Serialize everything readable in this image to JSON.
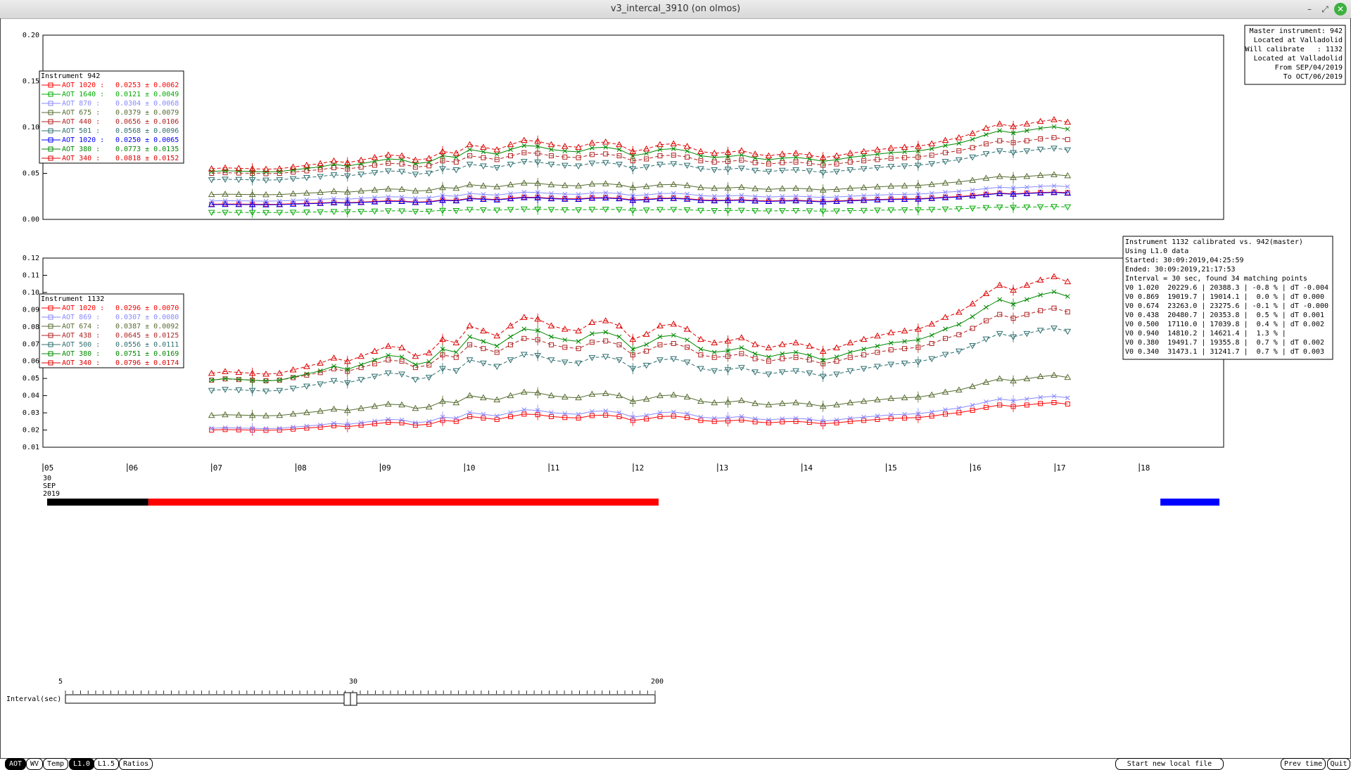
{
  "window": {
    "title": "v3_intercal_3910 (on olmos)",
    "minimize": "–",
    "maximize": "⤢",
    "close": "✕"
  },
  "info_box": {
    "lines": [
      "Master instrument: 942",
      "Located at Valladolid",
      "Will calibrate   : 1132",
      "Located at Valladolid",
      "From SEP/04/2019",
      "To OCT/06/2019"
    ]
  },
  "calib_box": {
    "lines": [
      "Instrument 1132 calibrated vs. 942(master)",
      "Using L1.0 data",
      "Started: 30:09:2019,04:25:59",
      "Ended: 30:09:2019,21:17:53",
      "Interval = 30 sec, found 34 matching points",
      "V0 1.020  20229.6 | 20388.3 | -0.8 % | dT -0.004",
      "V0 0.869  19019.7 | 19014.1 |  0.0 % | dT 0.000",
      "V0 0.674  23263.0 | 23275.6 | -0.1 % | dT -0.000",
      "V0 0.438  20480.7 | 20353.8 |  0.5 % | dT 0.001",
      "V0 0.500  17110.0 | 17039.8 |  0.4 % | dT 0.002",
      "V0 0.940  14810.2 | 14621.4 |  1.3 % |",
      "V0 0.380  19491.7 | 19355.8 |  0.7 % | dT 0.002",
      "V0 0.340  31473.1 | 31241.7 |  0.7 % | dT 0.003"
    ]
  },
  "chart_data": [
    {
      "type": "line",
      "legend_title": "Instrument 942",
      "xlim": [
        5,
        19
      ],
      "ylim": [
        0.0,
        0.2
      ],
      "yticks": [
        "0.00",
        "0.05",
        "0.10",
        "0.15",
        "0.20"
      ],
      "series": [
        {
          "name": "AOT 1020 :",
          "value": "0.0253 ± 0.0062",
          "color": "#ff0000",
          "marker": "square",
          "base": 0.0165,
          "amp": 0.7,
          "dashed": false
        },
        {
          "name": "AOT 1640 :",
          "value": "0.0121 ± 0.0049",
          "color": "#00aa00",
          "marker": "tri-down",
          "base": 0.0075,
          "amp": 0.75,
          "dashed": true
        },
        {
          "name": "AOT 870 :",
          "value": "0.0304 ± 0.0068",
          "color": "#8888ff",
          "marker": "x",
          "base": 0.02,
          "amp": 0.72,
          "dashed": false
        },
        {
          "name": "AOT 675 :",
          "value": "0.0379 ± 0.0079",
          "color": "#556b2f",
          "marker": "tri-up",
          "base": 0.027,
          "amp": 0.7,
          "dashed": false
        },
        {
          "name": "AOT 440 :",
          "value": "0.0656 ± 0.0106",
          "color": "#b22222",
          "marker": "square",
          "base": 0.05,
          "amp": 0.68,
          "dashed": true
        },
        {
          "name": "AOT 501 :",
          "value": "0.0568 ± 0.0096",
          "color": "#2f6f6f",
          "marker": "tri-down",
          "base": 0.043,
          "amp": 0.7,
          "dashed": true
        },
        {
          "name": "AOT 1020 :",
          "value": "0.0250 ± 0.0065",
          "color": "#0000ff",
          "marker": "tri-up",
          "base": 0.016,
          "amp": 0.72,
          "dashed": false
        },
        {
          "name": "AOT 380 :",
          "value": "0.0773 ± 0.0135",
          "color": "#008800",
          "marker": "x",
          "base": 0.052,
          "amp": 0.82,
          "dashed": false
        },
        {
          "name": "AOT 340 :",
          "value": "0.0818 ± 0.0152",
          "color": "#dd0000",
          "marker": "tri-up",
          "base": 0.055,
          "amp": 0.85,
          "dashed": true
        }
      ]
    },
    {
      "type": "line",
      "legend_title": "Instrument 1132",
      "xlim": [
        5,
        19
      ],
      "ylim": [
        0.01,
        0.12
      ],
      "yticks": [
        "0.01",
        "0.02",
        "0.03",
        "0.04",
        "0.05",
        "0.06",
        "0.07",
        "0.08",
        "0.09",
        "0.10",
        "0.11",
        "0.12"
      ],
      "series": [
        {
          "name": "AOT 1020 :",
          "value": "0.0296 ± 0.0070",
          "color": "#ff0000",
          "marker": "square",
          "base": 0.02,
          "amp": 0.7,
          "dashed": false
        },
        {
          "name": "AOT 869 :",
          "value": "0.0307 ± 0.0080",
          "color": "#8888ff",
          "marker": "x",
          "base": 0.021,
          "amp": 0.78,
          "dashed": false
        },
        {
          "name": "AOT 674 :",
          "value": "0.0387 ± 0.0092",
          "color": "#556b2f",
          "marker": "tri-up",
          "base": 0.0285,
          "amp": 0.72,
          "dashed": false
        },
        {
          "name": "AOT 438 :",
          "value": "0.0645 ± 0.0125",
          "color": "#b22222",
          "marker": "square",
          "base": 0.049,
          "amp": 0.75,
          "dashed": true
        },
        {
          "name": "AOT 500 :",
          "value": "0.0556 ± 0.0111",
          "color": "#2f6f6f",
          "marker": "tri-down",
          "base": 0.043,
          "amp": 0.74,
          "dashed": true
        },
        {
          "name": "AOT 380 :",
          "value": "0.0751 ± 0.0169",
          "color": "#008800",
          "marker": "x",
          "base": 0.049,
          "amp": 0.92,
          "dashed": false
        },
        {
          "name": "AOT 340 :",
          "value": "0.0796 ± 0.0174",
          "color": "#dd0000",
          "marker": "tri-up",
          "base": 0.053,
          "amp": 0.93,
          "dashed": true
        }
      ]
    }
  ],
  "x_axis": {
    "ticks": [
      "05",
      "06",
      "07",
      "08",
      "09",
      "10",
      "11",
      "12",
      "13",
      "14",
      "15",
      "16",
      "17",
      "18"
    ],
    "date_label": [
      "30",
      "SEP",
      "2019"
    ]
  },
  "profile": {
    "base": [
      1.0,
      1.02,
      1.01,
      1.0,
      0.99,
      1.0,
      1.04,
      1.08,
      1.12,
      1.18,
      1.14,
      1.2,
      1.26,
      1.32,
      1.3,
      1.2,
      1.24,
      1.4,
      1.36,
      1.56,
      1.5,
      1.44,
      1.56,
      1.66,
      1.64,
      1.56,
      1.52,
      1.5,
      1.6,
      1.62,
      1.56,
      1.4,
      1.46,
      1.56,
      1.58,
      1.52,
      1.4,
      1.36,
      1.38,
      1.42,
      1.34,
      1.3,
      1.34,
      1.36,
      1.32,
      1.26,
      1.3,
      1.36,
      1.4,
      1.44,
      1.48,
      1.5,
      1.52,
      1.58,
      1.66,
      1.72,
      1.82,
      1.94,
      2.04,
      1.98,
      2.04,
      2.1,
      2.14,
      2.08
    ]
  },
  "bars": {
    "black": [
      5.05,
      6.25
    ],
    "red": [
      6.25,
      12.3
    ],
    "blue": [
      18.25,
      18.95
    ]
  },
  "slider": {
    "label": "Interval(sec)",
    "ticks": [
      "5",
      "30",
      "200"
    ],
    "value": 30
  },
  "buttons": {
    "aot": "AOT",
    "wv": "WV",
    "temp": "Temp",
    "l10": "L1.0",
    "l15": "L1.5",
    "ratios": "Ratios",
    "start_new": "Start new local file",
    "prev_time": "Prev time",
    "quit": "Quit"
  }
}
